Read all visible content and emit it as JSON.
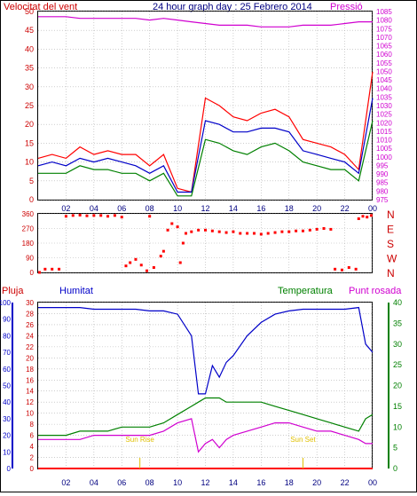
{
  "header": {
    "left_title": "Velocitat del vent",
    "center_title": "24 hour graph day : 25 Febrero 2014",
    "right_title": "Pressió"
  },
  "bottom_titles": {
    "pluja": "Pluja",
    "humitat": "Humitat",
    "temperatura": "Temperatura",
    "punt_rosada": "Punt rosada"
  },
  "colors": {
    "red": "#ff0000",
    "green": "#008000",
    "blue": "#0000c8",
    "magenta": "#d000d0",
    "dark_red": "#cc0000",
    "yellow": "#e0c000",
    "grid": "#b0b0b0",
    "title_blue": "#000080"
  },
  "x_ticks": [
    "02",
    "04",
    "06",
    "08",
    "10",
    "12",
    "14",
    "16",
    "18",
    "20",
    "22",
    "00"
  ],
  "chart_data": [
    {
      "type": "line",
      "title": "24 hour graph day : 25 Febrero 2014",
      "ylabel_left": "Velocitat del vent",
      "ylabel_right": "Pressió",
      "ylim_left": [
        0,
        50
      ],
      "ylim_right": [
        975,
        1085
      ],
      "yticks_left": [
        0,
        5,
        10,
        15,
        20,
        25,
        30,
        35,
        40,
        45,
        50
      ],
      "yticks_right": [
        975,
        980,
        985,
        990,
        995,
        1000,
        1005,
        1010,
        1015,
        1020,
        1025,
        1030,
        1035,
        1040,
        1045,
        1050,
        1055,
        1060,
        1065,
        1070,
        1075,
        1080,
        1085
      ],
      "x_hours": [
        0,
        1,
        2,
        3,
        4,
        5,
        6,
        7,
        8,
        9,
        10,
        11,
        12,
        13,
        14,
        15,
        16,
        17,
        18,
        19,
        20,
        21,
        22,
        23,
        24
      ],
      "series": [
        {
          "color": "red",
          "values": [
            11,
            12,
            11,
            14,
            12,
            13,
            12,
            12,
            9,
            12,
            3,
            2,
            27,
            25,
            22,
            21,
            23,
            24,
            22,
            16,
            15,
            14,
            12,
            8,
            34
          ]
        },
        {
          "color": "blue",
          "values": [
            9,
            10,
            9,
            11,
            10,
            11,
            10,
            9,
            7,
            9,
            2,
            2,
            21,
            20,
            18,
            18,
            19,
            19,
            18,
            13,
            12,
            11,
            10,
            7,
            27
          ]
        },
        {
          "color": "green",
          "values": [
            7,
            7,
            7,
            9,
            8,
            8,
            7,
            7,
            5,
            7,
            1,
            1,
            16,
            15,
            13,
            12,
            14,
            15,
            13,
            10,
            9,
            8,
            8,
            5,
            21
          ]
        },
        {
          "color": "magenta",
          "axis": "right",
          "values": [
            1082,
            1082,
            1082,
            1081,
            1081,
            1081,
            1081,
            1081,
            1080,
            1081,
            1080,
            1079,
            1078,
            1077,
            1077,
            1077,
            1076,
            1076,
            1076,
            1077,
            1077,
            1077,
            1078,
            1079,
            1079
          ]
        }
      ]
    },
    {
      "type": "scatter",
      "ylim": [
        0,
        360
      ],
      "yticks_left": [
        0,
        90,
        180,
        270,
        360
      ],
      "yticks_right": [
        "N",
        "W",
        "S",
        "E",
        "N"
      ],
      "points": [
        [
          0.1,
          0
        ],
        [
          0.5,
          20
        ],
        [
          1.0,
          20
        ],
        [
          1.5,
          20
        ],
        [
          2.0,
          345
        ],
        [
          2.5,
          350
        ],
        [
          3.0,
          352
        ],
        [
          3.5,
          348
        ],
        [
          4.0,
          350
        ],
        [
          4.5,
          350
        ],
        [
          5.0,
          345
        ],
        [
          5.5,
          350
        ],
        [
          6.0,
          340
        ],
        [
          6.3,
          40
        ],
        [
          6.6,
          60
        ],
        [
          7.0,
          80
        ],
        [
          7.4,
          45
        ],
        [
          7.8,
          10
        ],
        [
          8.0,
          345
        ],
        [
          8.3,
          30
        ],
        [
          8.8,
          100
        ],
        [
          9.0,
          130
        ],
        [
          9.3,
          260
        ],
        [
          9.6,
          300
        ],
        [
          10.0,
          280
        ],
        [
          10.2,
          60
        ],
        [
          10.4,
          180
        ],
        [
          10.6,
          240
        ],
        [
          11.0,
          250
        ],
        [
          11.5,
          260
        ],
        [
          12.0,
          260
        ],
        [
          12.5,
          255
        ],
        [
          13.0,
          250
        ],
        [
          13.5,
          245
        ],
        [
          14.0,
          250
        ],
        [
          14.5,
          240
        ],
        [
          15.0,
          240
        ],
        [
          15.5,
          240
        ],
        [
          16.0,
          235
        ],
        [
          16.5,
          240
        ],
        [
          17.0,
          245
        ],
        [
          17.5,
          250
        ],
        [
          18.0,
          250
        ],
        [
          18.5,
          255
        ],
        [
          19.0,
          255
        ],
        [
          19.5,
          260
        ],
        [
          20.0,
          265
        ],
        [
          20.5,
          270
        ],
        [
          21.0,
          265
        ],
        [
          21.3,
          20
        ],
        [
          21.8,
          15
        ],
        [
          22.3,
          30
        ],
        [
          22.8,
          20
        ],
        [
          23.0,
          330
        ],
        [
          23.3,
          345
        ],
        [
          23.6,
          340
        ],
        [
          23.9,
          350
        ]
      ]
    },
    {
      "type": "line",
      "ylabel_left_outer": "Pluja",
      "ylabel_left_inner": "Humitat",
      "ylabel_right_inner": "Temperatura",
      "ylabel_right_outer": "Punt rosada",
      "ylim_pluja": [
        0,
        30
      ],
      "ylim_humitat": [
        0,
        100
      ],
      "ylim_temp": [
        0,
        40
      ],
      "yticks_pluja": [
        0,
        2,
        4,
        6,
        8,
        10,
        12,
        14,
        16,
        18,
        20,
        22,
        24,
        26,
        28,
        30
      ],
      "yticks_humitat": [
        0,
        10,
        20,
        30,
        40,
        50,
        60,
        70,
        80,
        90,
        100
      ],
      "yticks_temp": [
        0,
        5,
        10,
        15,
        20,
        25,
        30,
        35,
        40
      ],
      "annotations": [
        "Sun Rise",
        "Sun Set"
      ],
      "annotation_hours": [
        7.3,
        19.0
      ],
      "x_hours": [
        0,
        1,
        2,
        3,
        4,
        5,
        6,
        7,
        8,
        9,
        10,
        11,
        11.5,
        12,
        12.5,
        13,
        13.5,
        14,
        15,
        16,
        17,
        18,
        19,
        20,
        21,
        22,
        23,
        23.5,
        24
      ],
      "series": [
        {
          "name": "Humitat",
          "color": "blue",
          "axis": "humitat",
          "values": [
            97,
            97,
            97,
            97,
            96,
            96,
            96,
            96,
            95,
            95,
            93,
            80,
            45,
            45,
            62,
            55,
            64,
            68,
            80,
            88,
            93,
            95,
            96,
            96,
            96,
            96,
            97,
            75,
            70
          ]
        },
        {
          "name": "Temperatura",
          "color": "green",
          "axis": "temp",
          "values": [
            8,
            8,
            8,
            9,
            9,
            9,
            10,
            10,
            10,
            11,
            13,
            15,
            16,
            17,
            17,
            17,
            16,
            16,
            16,
            16,
            15,
            14,
            13,
            12,
            11,
            10,
            9,
            12,
            13
          ]
        },
        {
          "name": "Punt rosada",
          "color": "magenta",
          "axis": "temp",
          "values": [
            7,
            7,
            7,
            7,
            8,
            8,
            8,
            8,
            8,
            9,
            11,
            12,
            4,
            6,
            7,
            5,
            7,
            8,
            9,
            10,
            11,
            11,
            10,
            9,
            9,
            8,
            7,
            6,
            6
          ]
        },
        {
          "name": "Pluja",
          "color": "red",
          "axis": "pluja",
          "values": [
            0,
            0,
            0,
            0,
            0,
            0,
            0,
            0,
            0,
            0,
            0,
            0,
            0,
            0,
            0,
            0,
            0,
            0,
            0,
            0,
            0,
            0,
            0,
            0,
            0,
            0,
            0,
            0,
            0
          ]
        }
      ]
    }
  ]
}
